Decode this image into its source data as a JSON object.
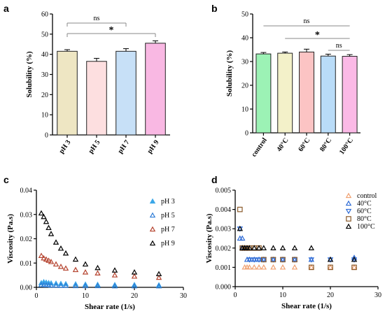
{
  "panels": {
    "a": "a",
    "b": "b",
    "c": "c",
    "d": "d"
  },
  "chart_data": [
    {
      "id": "a",
      "type": "bar",
      "ylabel": "Solubility (%)",
      "ylim": [
        0,
        60
      ],
      "yticks": [
        "0",
        "10",
        "20",
        "30",
        "40",
        "50",
        "60"
      ],
      "categories": [
        "pH 3",
        "pH 5",
        "pH 7",
        "pH 9"
      ],
      "values": [
        41.5,
        36.5,
        41.5,
        45.5
      ],
      "errors": [
        0.8,
        1.5,
        1.3,
        1.2
      ],
      "colors": [
        "#eee6c3",
        "#fddfe0",
        "#c7e0f7",
        "#f9b8e3"
      ],
      "significance": [
        {
          "from": 0,
          "to": 2,
          "label": "ns"
        },
        {
          "from": 0,
          "to": 3,
          "label": "*"
        }
      ]
    },
    {
      "id": "b",
      "type": "bar",
      "ylabel": "Solubility (%)",
      "ylim": [
        0,
        50
      ],
      "yticks": [
        "0",
        "10",
        "20",
        "30",
        "40",
        "50"
      ],
      "categories": [
        "control",
        "40°C",
        "60°C",
        "80°C",
        "100°C"
      ],
      "values": [
        33.2,
        33.5,
        34.0,
        32.3,
        32.2
      ],
      "errors": [
        0.6,
        0.5,
        1.2,
        0.8,
        0.7
      ],
      "colors": [
        "#9cf2b5",
        "#f3f1c9",
        "#fcc4c4",
        "#b9dcf8",
        "#fbb9e6"
      ],
      "significance": [
        {
          "from": 0,
          "to": 4,
          "label": "ns"
        },
        {
          "from": 1,
          "to": 4,
          "label": "*"
        },
        {
          "from": 3,
          "to": 4,
          "label": "ns"
        }
      ]
    },
    {
      "id": "c",
      "type": "scatter",
      "xlabel": "Shear rate (1/s)",
      "ylabel": "Viscosity (Pa.s)",
      "xlim": [
        0,
        30
      ],
      "ylim": [
        0,
        0.04
      ],
      "xticks": [
        "0",
        "10",
        "20",
        "30"
      ],
      "yticks": [
        "0.00",
        "0.01",
        "0.02",
        "0.03",
        "0.04"
      ],
      "series": [
        {
          "name": "pH 3",
          "color": "#3ba7e8",
          "fill": "#3ba7e8",
          "marker": "triangle-up",
          "x": [
            1,
            1.5,
            2,
            2.5,
            3,
            4,
            5,
            6,
            8,
            10,
            12.5,
            16,
            20,
            25
          ],
          "y": [
            0.0018,
            0.0022,
            0.002,
            0.0018,
            0.0017,
            0.0016,
            0.0015,
            0.0014,
            0.0013,
            0.0012,
            0.0011,
            0.001,
            0.001,
            0.0009
          ]
        },
        {
          "name": "pH 5",
          "color": "#2e7cd6",
          "fill": "none",
          "marker": "triangle-up",
          "x": [
            1,
            1.5,
            2,
            2.5,
            3,
            4,
            5,
            6,
            8,
            10,
            12.5,
            16,
            20,
            25
          ],
          "y": [
            0.001,
            0.001,
            0.0009,
            0.0009,
            0.0008,
            0.0008,
            0.0007,
            0.0007,
            0.0006,
            0.0006,
            0.0006,
            0.0005,
            0.0005,
            0.0005
          ]
        },
        {
          "name": "pH 7",
          "color": "#b5432f",
          "fill": "none",
          "marker": "triangle-up",
          "x": [
            1,
            1.5,
            2,
            2.5,
            3,
            4,
            5,
            6,
            8,
            10,
            12.5,
            16,
            20,
            25
          ],
          "y": [
            0.013,
            0.012,
            0.0115,
            0.011,
            0.0105,
            0.0095,
            0.0085,
            0.0078,
            0.0072,
            0.0062,
            0.0058,
            0.005,
            0.0045,
            0.004
          ]
        },
        {
          "name": "pH 9",
          "color": "#000000",
          "fill": "none",
          "marker": "triangle-up",
          "x": [
            1,
            1.5,
            2,
            2.5,
            3,
            4,
            5,
            6,
            8,
            10,
            12.5,
            16,
            20,
            25
          ],
          "y": [
            0.0305,
            0.029,
            0.027,
            0.0245,
            0.022,
            0.0185,
            0.016,
            0.014,
            0.0115,
            0.0095,
            0.008,
            0.007,
            0.0062,
            0.0055
          ]
        }
      ]
    },
    {
      "id": "d",
      "type": "scatter",
      "xlabel": "Shear rate (1/s)",
      "ylabel": "Viscosity (Pa.s)",
      "xlim": [
        0,
        30
      ],
      "ylim": [
        0,
        0.005
      ],
      "xticks": [
        "0",
        "10",
        "20",
        "30"
      ],
      "yticks": [
        "0.000",
        "0.001",
        "0.002",
        "0.003",
        "0.004",
        "0.005"
      ],
      "series": [
        {
          "name": "control",
          "color": "#f0a070",
          "fill": "none",
          "marker": "triangle-up",
          "x": [
            1.5,
            2,
            2.5,
            3,
            4,
            5,
            6,
            8,
            10,
            12.5,
            16,
            20,
            25
          ],
          "y": [
            0.002,
            0.001,
            0.001,
            0.001,
            0.001,
            0.001,
            0.001,
            0.001,
            0.001,
            0.001,
            0.001,
            0.001,
            0.001
          ]
        },
        {
          "name": "40°C",
          "color": "#2e6bd6",
          "fill": "none",
          "marker": "triangle-up",
          "x": [
            1,
            1.5,
            2,
            2.5,
            3,
            4,
            5,
            6,
            8,
            10,
            12.5,
            16,
            20,
            25
          ],
          "y": [
            0.0025,
            0.0025,
            0.002,
            0.0014,
            0.0014,
            0.0014,
            0.0014,
            0.0014,
            0.0014,
            0.0014,
            0.0014,
            0.0014,
            0.0014,
            0.0015
          ]
        },
        {
          "name": "60°C",
          "color": "#2e6bd6",
          "fill": "none",
          "marker": "triangle-down",
          "x": [
            1,
            1.5,
            2,
            2.5,
            3,
            4,
            5,
            6,
            8,
            10,
            12.5,
            16,
            20,
            25
          ],
          "y": [
            0.003,
            0.002,
            0.002,
            0.002,
            0.0014,
            0.0014,
            0.0014,
            0.0014,
            0.0014,
            0.0014,
            0.0014,
            0.0014,
            0.0014,
            0.0014
          ]
        },
        {
          "name": "80°C",
          "color": "#8a5a2a",
          "fill": "none",
          "marker": "square",
          "x": [
            1,
            1.5,
            2,
            2.5,
            3,
            4,
            5,
            6,
            8,
            10,
            12.5,
            16,
            20,
            25
          ],
          "y": [
            0.004,
            0.002,
            0.002,
            0.002,
            0.002,
            0.002,
            0.002,
            0.0014,
            0.0014,
            0.0014,
            0.0014,
            0.001,
            0.001,
            0.001
          ]
        },
        {
          "name": "100°C",
          "color": "#000000",
          "fill": "none",
          "marker": "triangle-up",
          "x": [
            1,
            1.5,
            2,
            2.5,
            3,
            4,
            5,
            6,
            8,
            10,
            12.5,
            16,
            20,
            25
          ],
          "y": [
            0.003,
            0.002,
            0.002,
            0.002,
            0.002,
            0.002,
            0.002,
            0.002,
            0.002,
            0.002,
            0.002,
            0.002,
            0.0014,
            0.0014
          ]
        }
      ]
    }
  ]
}
